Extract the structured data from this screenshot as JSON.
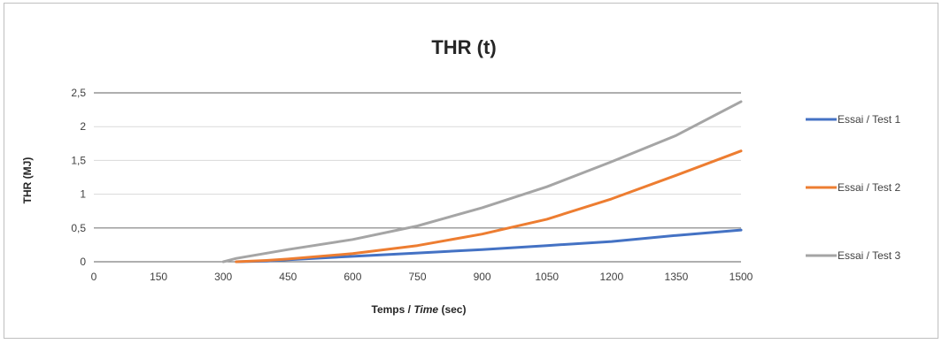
{
  "chart_data": {
    "type": "line",
    "title": "THR (t)",
    "xlabel_parts": [
      "Temps / ",
      "Time",
      " (sec)"
    ],
    "ylabel": "THR (MJ)",
    "xlim": [
      0,
      1500
    ],
    "ylim": [
      0,
      2.5
    ],
    "x_ticks": [
      0,
      150,
      300,
      450,
      600,
      750,
      900,
      1050,
      1200,
      1350,
      1500
    ],
    "y_ticks": [
      0,
      0.5,
      1,
      1.5,
      2,
      2.5
    ],
    "y_tick_labels": [
      "0",
      "0,5",
      "1",
      "1,5",
      "2",
      "2,5"
    ],
    "grid": "horizontal",
    "legend_position": "right",
    "series": [
      {
        "name": "Essai / Test 1",
        "color": "#4472c4",
        "points": [
          [
            330,
            0
          ],
          [
            400,
            0.01
          ],
          [
            450,
            0.03
          ],
          [
            600,
            0.08
          ],
          [
            750,
            0.13
          ],
          [
            900,
            0.18
          ],
          [
            1050,
            0.24
          ],
          [
            1200,
            0.3
          ],
          [
            1350,
            0.39
          ],
          [
            1500,
            0.47
          ]
        ]
      },
      {
        "name": "Essai / Test 2",
        "color": "#ed7d31",
        "points": [
          [
            330,
            0
          ],
          [
            400,
            0.02
          ],
          [
            450,
            0.04
          ],
          [
            600,
            0.12
          ],
          [
            750,
            0.24
          ],
          [
            900,
            0.41
          ],
          [
            1050,
            0.63
          ],
          [
            1200,
            0.93
          ],
          [
            1350,
            1.28
          ],
          [
            1500,
            1.64
          ]
        ]
      },
      {
        "name": "Essai / Test 3",
        "color": "#a5a5a5",
        "points": [
          [
            300,
            0
          ],
          [
            330,
            0.05
          ],
          [
            450,
            0.18
          ],
          [
            600,
            0.33
          ],
          [
            750,
            0.53
          ],
          [
            900,
            0.8
          ],
          [
            1050,
            1.11
          ],
          [
            1200,
            1.48
          ],
          [
            1350,
            1.87
          ],
          [
            1500,
            2.37
          ]
        ]
      }
    ]
  }
}
